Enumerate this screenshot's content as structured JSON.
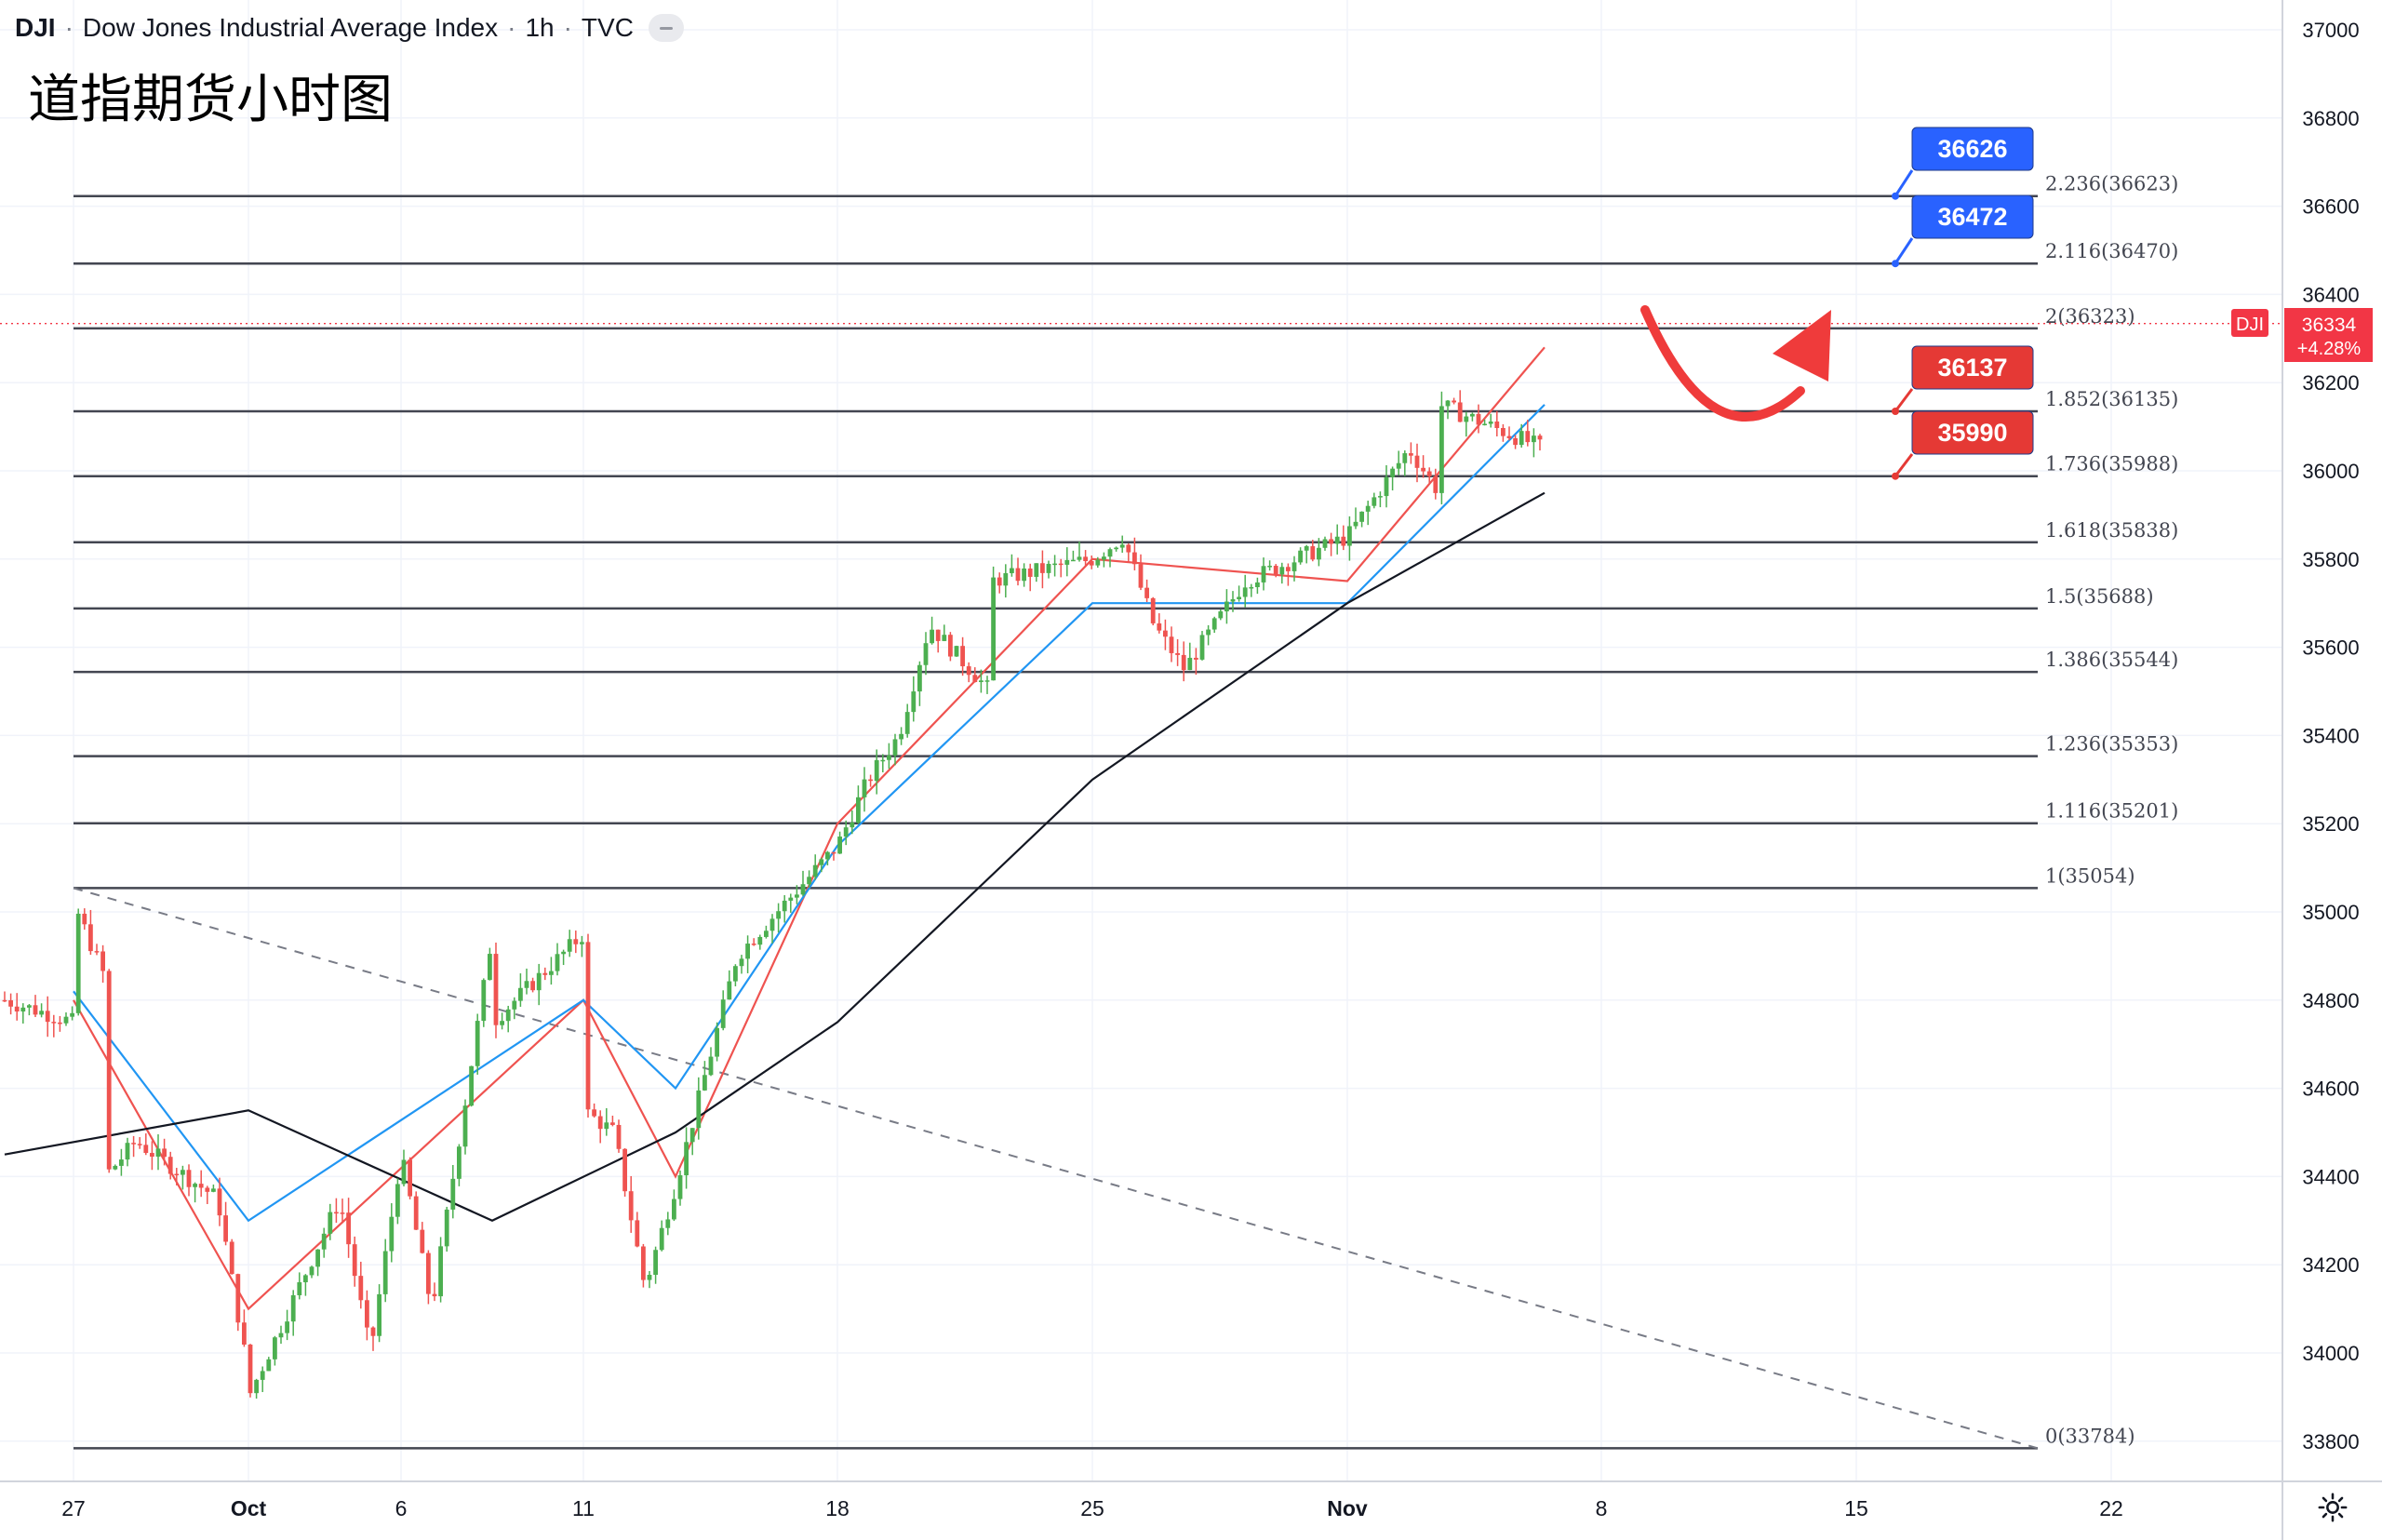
{
  "header": {
    "symbol": "DJI",
    "name": "Dow Jones Industrial Average Index",
    "interval": "1h",
    "source": "TVC"
  },
  "annotation_title": "道指期货小时图",
  "colors": {
    "up": "#26a69a",
    "up_candle": "#4caf50",
    "down": "#ef5350",
    "fib_line": "#434651",
    "ma_fast": "#ef5350",
    "ma_mid": "#2196f3",
    "ma_slow": "#131722",
    "blue_label": "#2962ff",
    "red_label": "#e53935",
    "price_tag": "#f23645"
  },
  "price_tag": {
    "symbol": "DJI",
    "price": "36334",
    "change": "+4.28%"
  },
  "callouts": [
    {
      "text": "36626",
      "color": "blue",
      "price": 36623
    },
    {
      "text": "36472",
      "color": "blue",
      "price": 36470
    },
    {
      "text": "36137",
      "color": "red",
      "price": 36135
    },
    {
      "text": "35990",
      "color": "red",
      "price": 35988
    }
  ],
  "chart_data": {
    "type": "candlestick",
    "title": "",
    "y_axis_ticks": [
      "37000",
      "36800",
      "36600",
      "36400",
      "36200",
      "36000",
      "35800",
      "35600",
      "35400",
      "35200",
      "35000",
      "34800",
      "34600",
      "34400",
      "34200",
      "34000",
      "33800"
    ],
    "x_axis_ticks": [
      "27",
      "Oct",
      "6",
      "11",
      "18",
      "25",
      "Nov",
      "8",
      "15",
      "22"
    ],
    "ylim": [
      33700,
      37050
    ],
    "fib_levels": [
      {
        "ratio": "0",
        "price": 33784,
        "label": "0(33784)"
      },
      {
        "ratio": "1",
        "price": 35054,
        "label": "1(35054)"
      },
      {
        "ratio": "1.116",
        "price": 35201,
        "label": "1.116(35201)"
      },
      {
        "ratio": "1.236",
        "price": 35353,
        "label": "1.236(35353)"
      },
      {
        "ratio": "1.386",
        "price": 35544,
        "label": "1.386(35544)"
      },
      {
        "ratio": "1.5",
        "price": 35688,
        "label": "1.5(35688)"
      },
      {
        "ratio": "1.618",
        "price": 35838,
        "label": "1.618(35838)"
      },
      {
        "ratio": "1.736",
        "price": 35988,
        "label": "1.736(35988)"
      },
      {
        "ratio": "1.852",
        "price": 36135,
        "label": "1.852(36135)"
      },
      {
        "ratio": "2",
        "price": 36323,
        "label": "2(36323)"
      },
      {
        "ratio": "2.116",
        "price": 36470,
        "label": "2.116(36470)"
      },
      {
        "ratio": "2.236",
        "price": 36623,
        "label": "2.236(36623)"
      }
    ],
    "trendline": {
      "from": {
        "x": "27",
        "price": 35054
      },
      "to": {
        "x": "20",
        "price": 33784
      },
      "style": "dashed"
    },
    "last_price": 36334,
    "price_path": [
      [
        "Sep 24",
        34800
      ],
      [
        "27",
        34750
      ],
      [
        "27",
        35020
      ],
      [
        "Sep 28",
        34850
      ],
      [
        "Sep 28",
        34400
      ],
      [
        "Sep 29",
        34480
      ],
      [
        "Sep 30",
        34350
      ],
      [
        "Oct 1",
        33950
      ],
      [
        "Oct 1",
        33900
      ],
      [
        "Oct 4",
        34350
      ],
      [
        "Oct 5",
        34000
      ],
      [
        "Oct 6",
        34450
      ],
      [
        "Oct 7",
        34100
      ],
      [
        "Oct 8",
        34950
      ],
      [
        "Oct 8",
        34750
      ],
      [
        "Oct 11",
        34950
      ],
      [
        "Oct 11",
        34550
      ],
      [
        "Oct 12",
        34500
      ],
      [
        "Oct 13",
        34150
      ],
      [
        "Oct 14",
        34380
      ],
      [
        "Oct 15",
        34900
      ],
      [
        "18",
        35150
      ],
      [
        "Oct 19",
        35300
      ],
      [
        "Oct 20",
        35400
      ],
      [
        "Oct 21",
        35650
      ],
      [
        "Oct 22",
        35500
      ],
      [
        "Oct 22",
        35750
      ],
      [
        "25",
        35800
      ],
      [
        "Oct 26",
        35850
      ],
      [
        "Oct 27",
        35650
      ],
      [
        "Oct 28",
        35550
      ],
      [
        "Oct 29",
        35750
      ],
      [
        "Nov 1",
        35850
      ],
      [
        "Nov 2",
        35950
      ],
      [
        "Nov 3",
        36050
      ],
      [
        "Nov 4",
        35950
      ],
      [
        "Nov 4",
        36150
      ],
      [
        "Nov 5",
        36050
      ],
      [
        "Nov 5",
        36450
      ],
      [
        "Nov 5",
        36200
      ],
      [
        "Nov 5",
        36334
      ]
    ],
    "moving_averages": [
      {
        "color": "red",
        "points": [
          [
            "27",
            34800
          ],
          [
            "Oct 1",
            34100
          ],
          [
            "Oct 11",
            34800
          ],
          [
            "Oct 14",
            34400
          ],
          [
            "18",
            35200
          ],
          [
            "25",
            35800
          ],
          [
            "Nov 1",
            35750
          ],
          [
            "Nov 5",
            36280
          ]
        ]
      },
      {
        "color": "blue",
        "points": [
          [
            "27",
            34820
          ],
          [
            "Oct 1",
            34300
          ],
          [
            "Oct 11",
            34800
          ],
          [
            "Oct 14",
            34600
          ],
          [
            "18",
            35150
          ],
          [
            "25",
            35700
          ],
          [
            "Nov 1",
            35700
          ],
          [
            "Nov 5",
            36150
          ]
        ]
      },
      {
        "color": "black",
        "points": [
          [
            "Sep 24",
            34450
          ],
          [
            "Oct 1",
            34550
          ],
          [
            "Oct 8",
            34300
          ],
          [
            "Oct 14",
            34500
          ],
          [
            "18",
            34750
          ],
          [
            "25",
            35300
          ],
          [
            "Nov 1",
            35700
          ],
          [
            "Nov 5",
            35950
          ]
        ]
      }
    ]
  }
}
